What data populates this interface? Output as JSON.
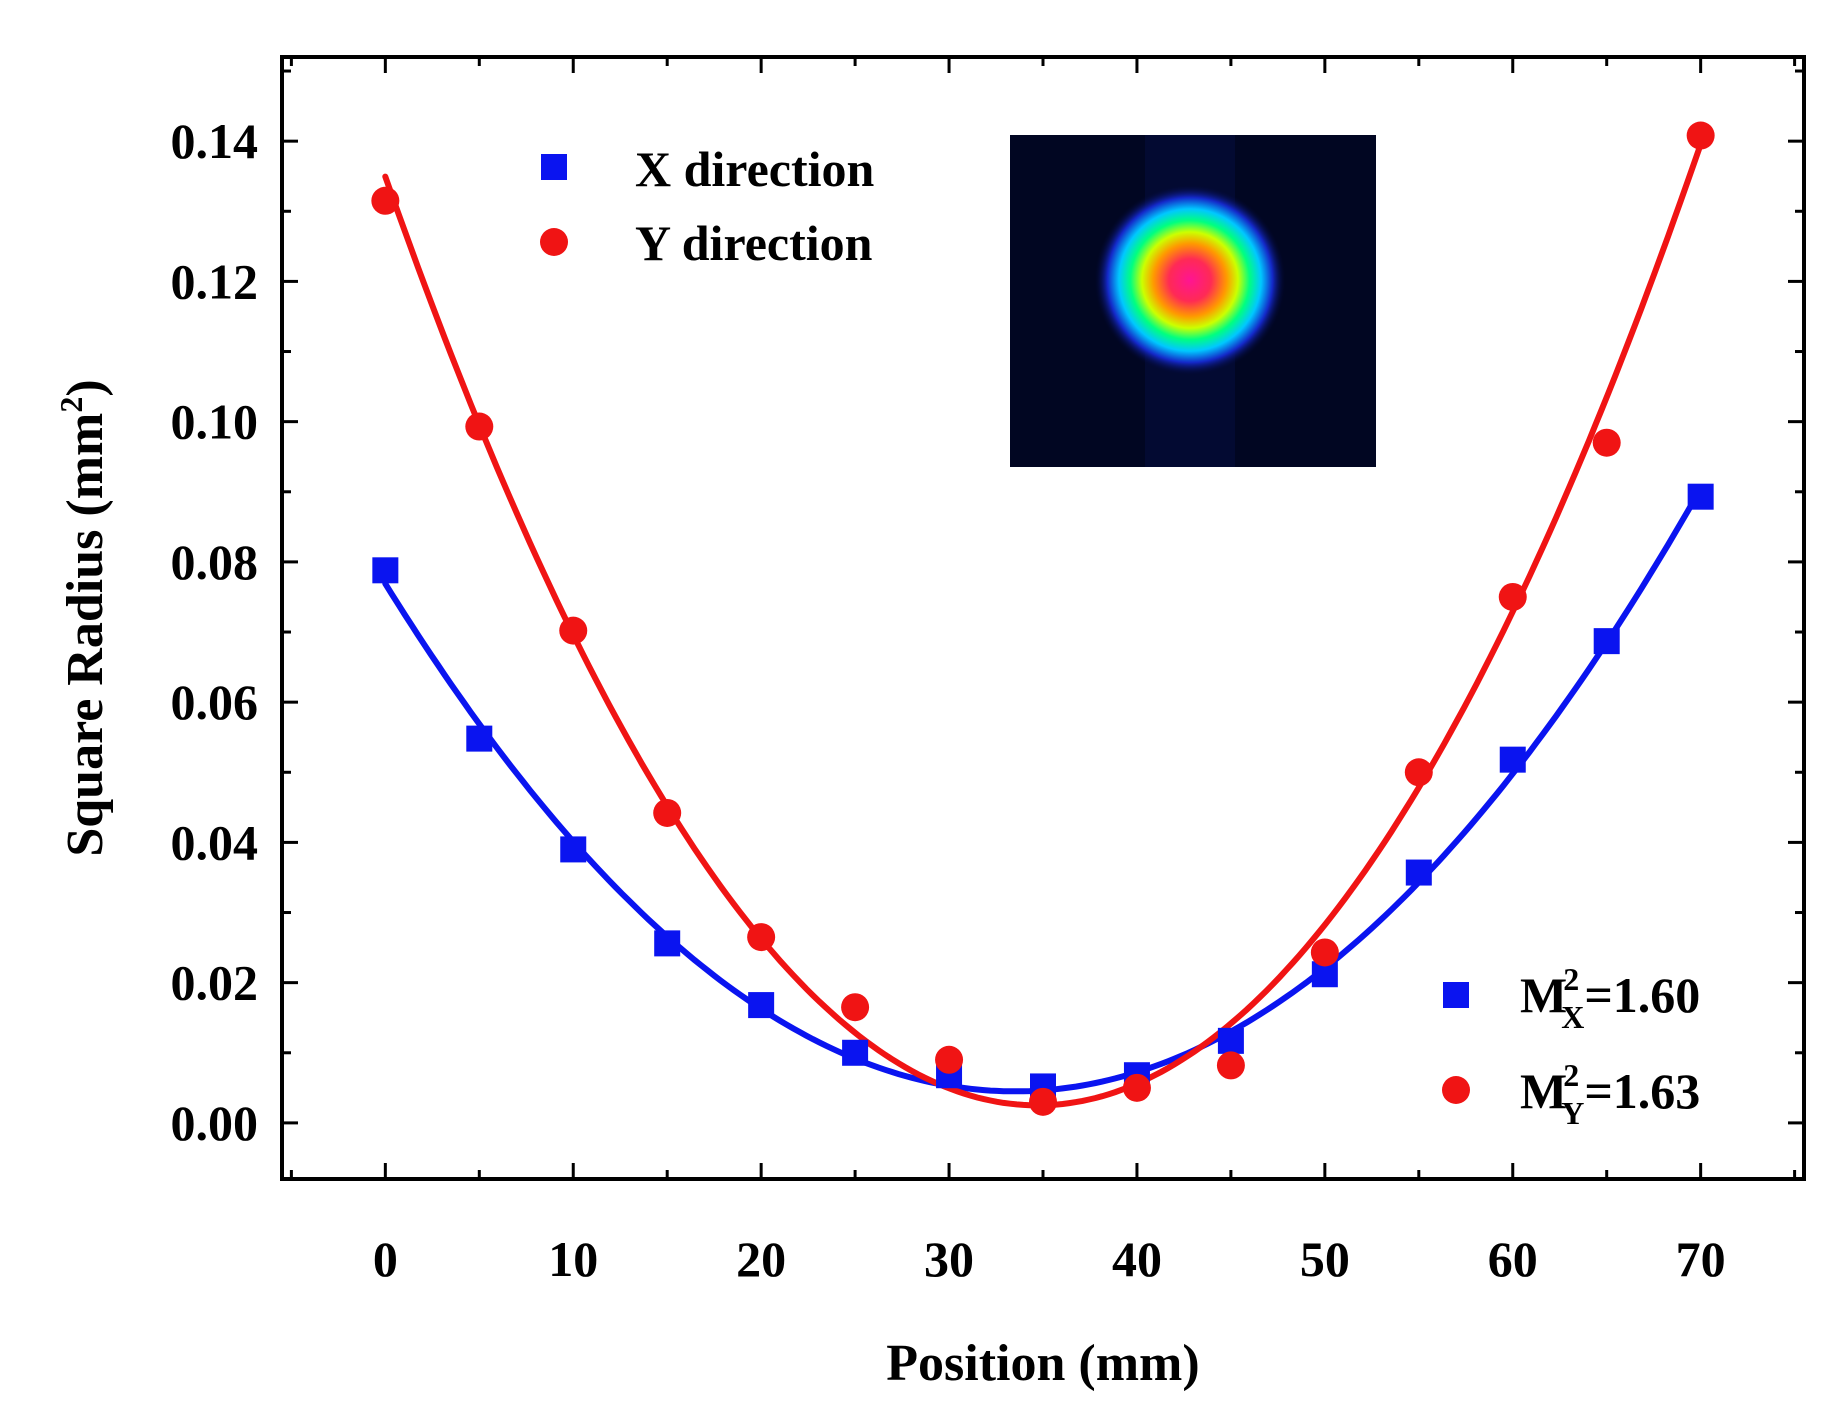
{
  "chart_data": {
    "type": "scatter",
    "xlabel": "Position (mm)",
    "ylabel_main": "Square Radius (mm",
    "ylabel_sup": "2",
    "ylabel_close": ")",
    "xlim": [
      -5.5,
      75.5
    ],
    "ylim": [
      -0.008,
      0.152
    ],
    "x_ticks": [
      0,
      10,
      20,
      30,
      40,
      50,
      60,
      70
    ],
    "y_ticks": [
      0.0,
      0.02,
      0.04,
      0.06,
      0.08,
      0.1,
      0.12,
      0.14
    ],
    "y_tick_labels": [
      "0.00",
      "0.02",
      "0.04",
      "0.06",
      "0.08",
      "0.10",
      "0.12",
      "0.14"
    ],
    "x_tick_labels": [
      "0",
      "10",
      "20",
      "30",
      "40",
      "50",
      "60",
      "70"
    ],
    "x": [
      0,
      5,
      10,
      15,
      20,
      25,
      30,
      35,
      40,
      45,
      50,
      55,
      60,
      65,
      70
    ],
    "series": [
      {
        "name": "X direction",
        "marker": "square",
        "color": "#0a14f0",
        "values": [
          0.0788,
          0.0548,
          0.039,
          0.0256,
          0.0168,
          0.01,
          0.0068,
          0.0052,
          0.0068,
          0.0117,
          0.0212,
          0.0357,
          0.0518,
          0.0687,
          0.0893
        ],
        "fit": {
          "a": 6.45e-05,
          "vertex_x": 33.5,
          "min": 0.0045,
          "x_from": 0,
          "x_to": 70
        }
      },
      {
        "name": "Y direction",
        "marker": "circle",
        "color": "#f01414",
        "values": [
          0.1315,
          0.0993,
          0.0702,
          0.0442,
          0.0265,
          0.0165,
          0.009,
          0.003,
          0.005,
          0.0082,
          0.0243,
          0.05,
          0.075,
          0.097,
          0.1408
        ],
        "fit": {
          "a": 0.00011,
          "vertex_x": 34.7,
          "min": 0.0025,
          "x_from": 0,
          "x_to": 70
        }
      }
    ],
    "legend_top": [
      {
        "label": "X direction",
        "marker": "square",
        "color": "#0a14f0"
      },
      {
        "label": "Y direction",
        "marker": "circle",
        "color": "#f01414"
      }
    ],
    "legend_bottom": [
      {
        "prefix": "M",
        "sup": "2",
        "sub": "X",
        "suffix": "=1.60",
        "marker": "square",
        "color": "#0a14f0"
      },
      {
        "prefix": "M",
        "sup": "2",
        "sub": "Y",
        "suffix": "=1.63",
        "marker": "circle",
        "color": "#f01414"
      }
    ],
    "legend_placement": "top-left and bottom-right",
    "inset": "beam-profile-image"
  }
}
